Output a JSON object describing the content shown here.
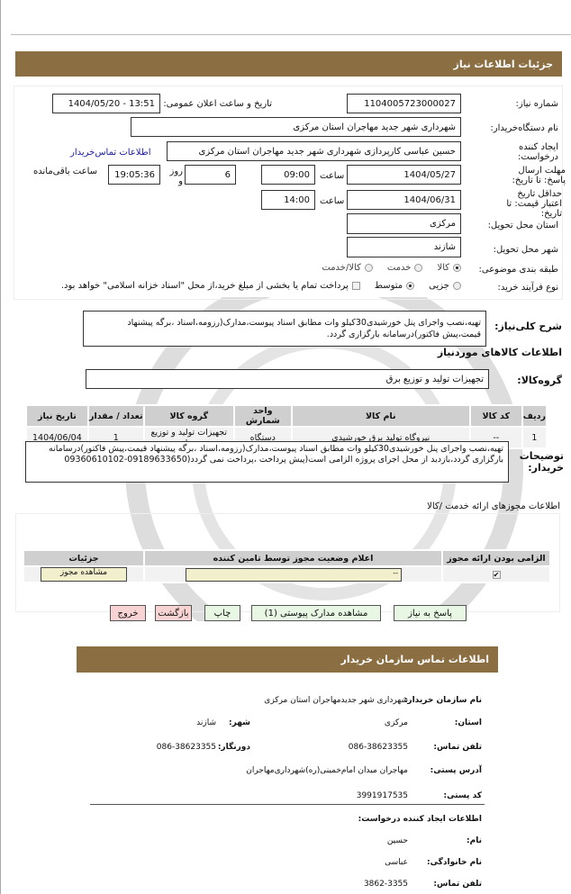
{
  "colors": {
    "header": "#8b6e41",
    "link": "#1a1aa8",
    "green_button": "#e8f7e4",
    "red_button": "#f8d3d3",
    "yellow_input": "#f2f0cc"
  },
  "header": {
    "title": "جزئیات اطلاعات نیاز"
  },
  "form": {
    "need_number_label": "شماره نیاز:",
    "need_number": "1104005723000027",
    "announce_label": "تاریخ و ساعت اعلان عمومی:",
    "announce_value": "1404/05/20 - 13:51",
    "buyer_label": "نام دستگاه‌خریدار:",
    "buyer_value": "شهرداری شهر جدید مهاجران استان مرکزی",
    "creator_label": "ایجاد کننده درخواست:",
    "creator_value": "حسین عباسی  کارپردازی  شهرداری شهر جدید مهاجران استان مرکزی",
    "contact_link": "اطلاعات تماس‌خریدار",
    "deadline_label": "مهلت ارسال پاسخ: تا تاریخ:",
    "deadline_date": "1404/05/27",
    "time_label": "ساعت",
    "deadline_time": "09:00",
    "days_value": "6",
    "days_label": "روز و",
    "remaining_time": "19:05:36",
    "remaining_label": "ساعت باقی‌مانده",
    "validity_label": "حداقل تاریخ اعتبار قیمت: تا تاریخ:",
    "validity_date": "1404/06/31",
    "validity_time": "14:00",
    "province_label": "استان محل تحویل:",
    "province_value": "مرکزی",
    "city_label": "شهر محل تحویل:",
    "city_value": "شازند",
    "category_label": "طبقه بندی موضوعی:",
    "category_options": [
      "کالا",
      "خدمت",
      "کالا/خدمت"
    ],
    "category_selected": "کالا",
    "process_label": "نوع فرآیند خرید:",
    "process_options": [
      "جزیی",
      "متوسط"
    ],
    "process_selected": "متوسط",
    "payment_note": "پرداخت تمام یا بخشی از مبلغ خرید،از محل \"اسناد خزانه اسلامی\" خواهد بود."
  },
  "summary": {
    "label": "شرح کلی‌نیاز:",
    "text": "تهیه،نصب واجرای پنل خورشیدی30کیلو وات مطابق اسناد  پیوست،مدارک(رزومه،اسناد ،برگه  پیشنهاد قیمت،پیش  فاکتور)درسامانه  بارگزاری گردد."
  },
  "goods": {
    "title": "اطلاعات کالاهای موردنیاز",
    "group_label": "گروه‌کالا:",
    "group_value": "تجهیزات تولید و توزیع برق",
    "columns": [
      "ردیف",
      "کد کالا",
      "نام کالا",
      "واحد شمارش",
      "گروه کالا",
      "تعداد / مقدار",
      "تاریخ نیاز"
    ],
    "rows": [
      [
        "1",
        "--",
        "نیروگاه تولید برق خورشیدی",
        "دستگاه",
        "تجهیزات تولید و توزیع برق",
        "1",
        "1404/06/04"
      ]
    ]
  },
  "buyer_notes": {
    "label": "توضیحات خریدار:",
    "text": "تهیه،نصب واجرای پنل خورشیدی30کیلو وات مطابق اسناد  پیوست،مدارک(رزومه،اسناد ،برگه  پیشنهاد  قیمت،پیش فاکتور)درسامانه  بارگزاری  گردد،بازدید از محل اجرای پروژه الزامی است(پیش پرداخت ،پرداخت نمی گردد(09189633650-09360610102"
  },
  "permits": {
    "title": "اطلاعات  مجوزهای ارائه خدمت /کالا",
    "columns": [
      "الزامی بودن ارائه مجوز",
      "اعلام وضعیت مجوز توسط تامین کننده",
      "جزئیات"
    ],
    "status_value": "--",
    "view_button": "مشاهده مجوز",
    "required": true
  },
  "buttons": {
    "reply": "پاسخ به نیاز",
    "attachments": "مشاهده مدارک پیوستی (1)",
    "print": "چاپ",
    "back": "بازگشت",
    "exit": "خروج"
  },
  "contact": {
    "title": "اطلاعات تماس سازمان خریدار",
    "org_label": "نام سازمان خریدار:",
    "org_value": "شهرداری شهر جدیدمهاجران استان مرکزی",
    "province_label": "استان:",
    "province_value": "مرکزی",
    "city_label": "شهر:",
    "city_value": "شازند",
    "phone_label": "تلفن تماس:",
    "phone_value": "086-38623355",
    "fax_label": "دورنگار:",
    "fax_value": "086-38623355",
    "address_label": "آدرس پستی:",
    "address_value": "مهاجران میدان امام‌خمینی(ره)شهرداری‌مهاجران",
    "postal_label": "کد پستی:",
    "postal_value": "3991917535",
    "creator_title": "اطلاعات ایجاد کننده درخواست:",
    "name_label": "نام:",
    "name_value": "حسین",
    "family_label": "نام خانوادگی:",
    "family_value": "عباسی",
    "creator_phone_label": "تلفن تماس:",
    "creator_phone_value": "3862-3355"
  }
}
